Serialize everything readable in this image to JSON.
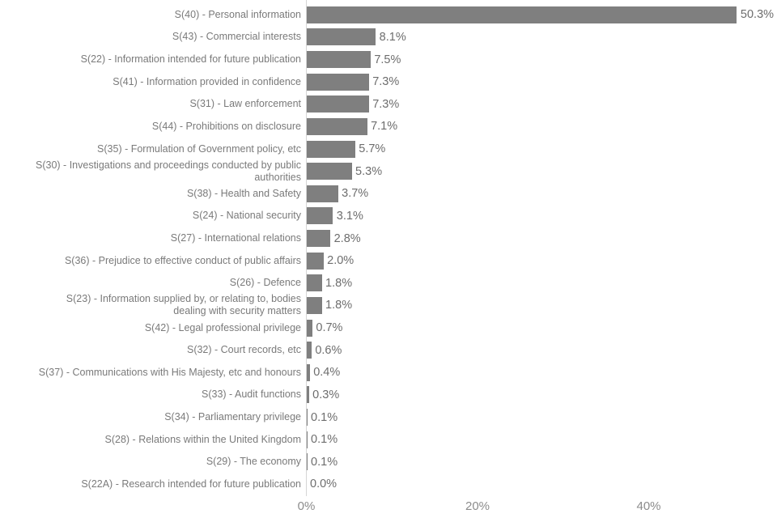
{
  "chart_data": {
    "type": "bar",
    "orientation": "horizontal",
    "title": "",
    "xlabel": "",
    "ylabel": "",
    "grid": false,
    "legend": false,
    "bar_color": "#7f7f7f",
    "axis_line_color": "#d6d6d6",
    "category_label_color": "#7a7a7a",
    "value_label_color": "#6d6d6d",
    "tick_label_color": "#8c8c8c",
    "xlim": [
      0,
      55
    ],
    "x_ticks": [
      {
        "value": 0,
        "label": "0%"
      },
      {
        "value": 20,
        "label": "20%"
      },
      {
        "value": 40,
        "label": "40%"
      }
    ],
    "categories": [
      "S(40) - Personal information",
      "S(43) - Commercial interests",
      "S(22) - Information intended for future publication",
      "S(41) - Information provided in confidence",
      "S(31) - Law enforcement",
      "S(44) - Prohibitions on disclosure",
      "S(35) - Formulation of Government policy, etc",
      "S(30) - Investigations and proceedings conducted by public\nauthorities",
      "S(38) - Health and Safety",
      "S(24) - National security",
      "S(27) - International relations",
      "S(36) - Prejudice to effective conduct of public affairs",
      "S(26) - Defence",
      "S(23) - Information supplied by, or relating to, bodies\ndealing with security matters",
      "S(42) - Legal professional privilege",
      "S(32) - Court records, etc",
      "S(37) - Communications with His Majesty, etc and honours",
      "S(33) - Audit functions",
      "S(34) - Parliamentary privilege",
      "S(28) - Relations within the United Kingdom",
      "S(29) - The economy",
      "S(22A) - Research intended for future publication"
    ],
    "values": [
      50.3,
      8.1,
      7.5,
      7.3,
      7.3,
      7.1,
      5.7,
      5.3,
      3.7,
      3.1,
      2.8,
      2.0,
      1.8,
      1.8,
      0.7,
      0.6,
      0.4,
      0.3,
      0.1,
      0.1,
      0.1,
      0.0
    ],
    "value_labels": [
      "50.3%",
      "8.1%",
      "7.5%",
      "7.3%",
      "7.3%",
      "7.1%",
      "5.7%",
      "5.3%",
      "3.7%",
      "3.1%",
      "2.8%",
      "2.0%",
      "1.8%",
      "1.8%",
      "0.7%",
      "0.6%",
      "0.4%",
      "0.3%",
      "0.1%",
      "0.1%",
      "0.1%",
      "0.0%"
    ]
  }
}
